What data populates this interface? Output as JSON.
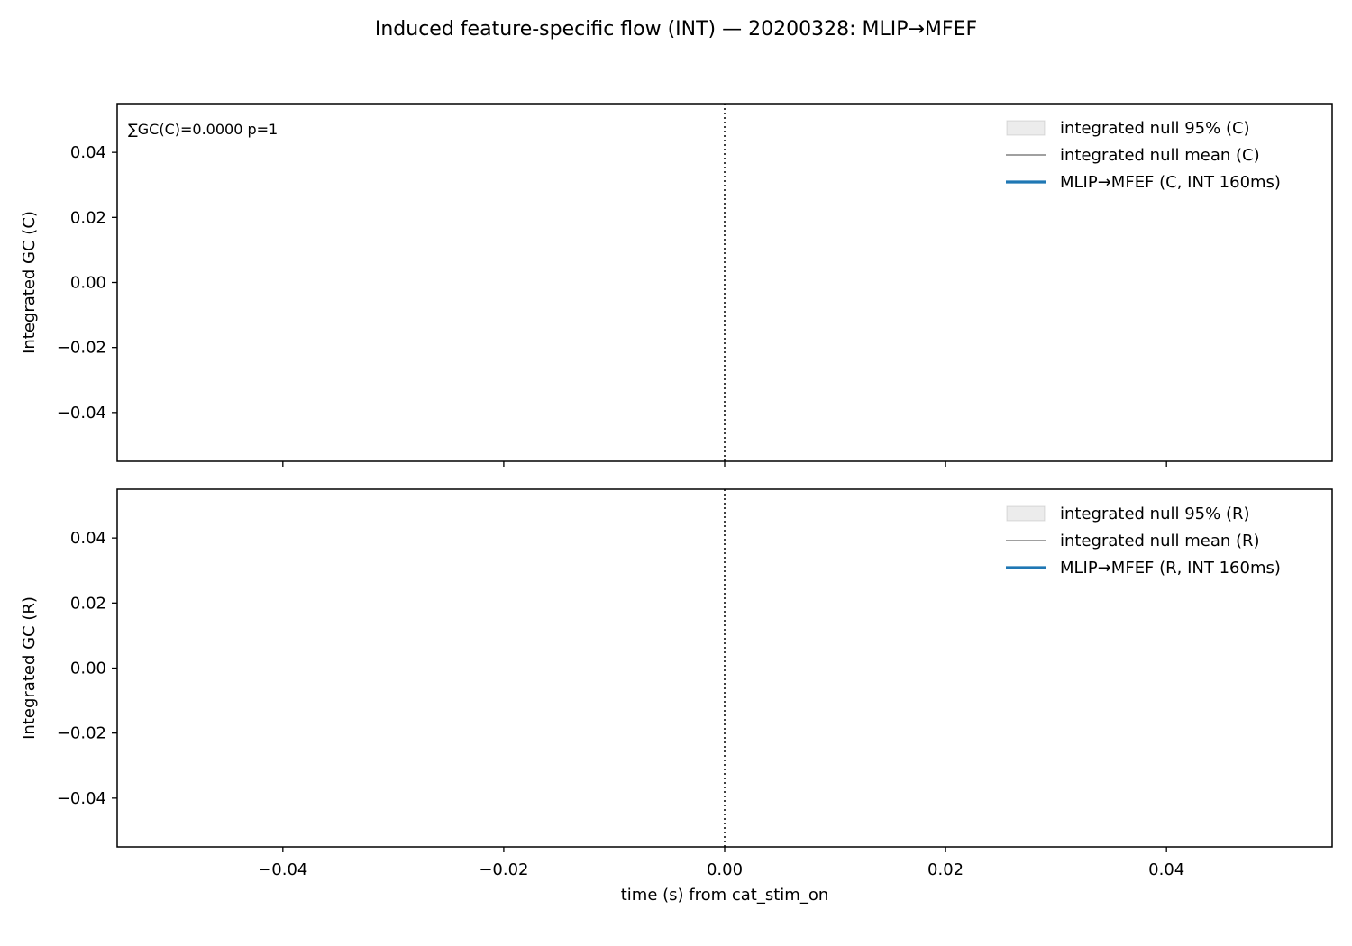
{
  "figure": {
    "title": "Induced feature-specific flow (INT) — 20200328: MLIP→MFEF"
  },
  "chart_data": [
    {
      "type": "line",
      "panel": "C",
      "ylabel": "Integrated GC (C)",
      "xlabel": "",
      "xlim": [
        -0.055,
        0.055
      ],
      "ylim": [
        -0.055,
        0.055
      ],
      "xticks": [
        -0.04,
        -0.02,
        0.0,
        0.02,
        0.04
      ],
      "xtick_labels": [],
      "yticks": [
        0.04,
        0.02,
        0.0,
        -0.02,
        -0.04
      ],
      "ytick_labels": [
        "0.04",
        "0.02",
        "0.00",
        "−0.02",
        "−0.04"
      ],
      "vline_x": 0.0,
      "grid": false,
      "annotation": "∑GC(C)=0.0000  p=1",
      "legend_position": "upper right",
      "legend": [
        {
          "label": "integrated null 95% (C)",
          "kind": "band",
          "color": "#7f7f7f"
        },
        {
          "label": "integrated null mean (C)",
          "kind": "line",
          "color": "#808080"
        },
        {
          "label": "MLIP→MFEF (C, INT 160ms)",
          "kind": "line",
          "color": "#1f77b4"
        }
      ],
      "series": [
        {
          "name": "integrated null 95% (C)",
          "x": [],
          "lower": [],
          "upper": []
        },
        {
          "name": "integrated null mean (C)",
          "x": [],
          "y": []
        },
        {
          "name": "MLIP→MFEF (C, INT 160ms)",
          "x": [],
          "y": []
        }
      ]
    },
    {
      "type": "line",
      "panel": "R",
      "ylabel": "Integrated GC (R)",
      "xlabel": "time (s) from cat_stim_on",
      "xlim": [
        -0.055,
        0.055
      ],
      "ylim": [
        -0.055,
        0.055
      ],
      "xticks": [
        -0.04,
        -0.02,
        0.0,
        0.02,
        0.04
      ],
      "xtick_labels": [
        "−0.04",
        "−0.02",
        "0.00",
        "0.02",
        "0.04"
      ],
      "yticks": [
        0.04,
        0.02,
        0.0,
        -0.02,
        -0.04
      ],
      "ytick_labels": [
        "0.04",
        "0.02",
        "0.00",
        "−0.02",
        "−0.04"
      ],
      "vline_x": 0.0,
      "grid": false,
      "legend_position": "upper right",
      "legend": [
        {
          "label": "integrated null 95% (R)",
          "kind": "band",
          "color": "#7f7f7f"
        },
        {
          "label": "integrated null mean (R)",
          "kind": "line",
          "color": "#808080"
        },
        {
          "label": "MLIP→MFEF (R, INT 160ms)",
          "kind": "line",
          "color": "#1f77b4"
        }
      ],
      "series": [
        {
          "name": "integrated null 95% (R)",
          "x": [],
          "lower": [],
          "upper": []
        },
        {
          "name": "integrated null mean (R)",
          "x": [],
          "y": []
        },
        {
          "name": "MLIP→MFEF (R, INT 160ms)",
          "x": [],
          "y": []
        }
      ]
    }
  ]
}
